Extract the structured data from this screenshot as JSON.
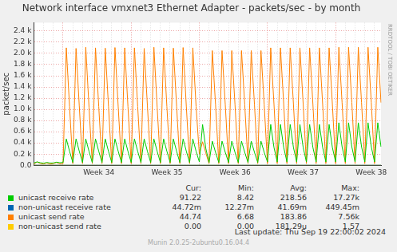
{
  "chart_data": {
    "type": "line",
    "title": "Network interface vmxnet3 Ethernet Adapter - packets/sec - by month",
    "y_label": "packet/sec",
    "categories": [
      null,
      null,
      null,
      null,
      null,
      null,
      null,
      null,
      null,
      null,
      null,
      null,
      null,
      null,
      null,
      null,
      null,
      null,
      null,
      null,
      "Week 34",
      null,
      null,
      null,
      null,
      null,
      null,
      null,
      null,
      null,
      null,
      null,
      null,
      null,
      null,
      null,
      null,
      null,
      null,
      null,
      null,
      "Week 35",
      null,
      null,
      null,
      null,
      null,
      null,
      null,
      null,
      null,
      null,
      null,
      null,
      null,
      null,
      null,
      null,
      null,
      null,
      null,
      null,
      "Week 36",
      null,
      null,
      null,
      null,
      null,
      null,
      null,
      null,
      null,
      null,
      null,
      null,
      null,
      null,
      null,
      null,
      null,
      null,
      null,
      null,
      "Week 37",
      null,
      null,
      null,
      null,
      null,
      null,
      null,
      null,
      null,
      null,
      null,
      null,
      null,
      null,
      null,
      null,
      null,
      null,
      null,
      null,
      "Week 38",
      null,
      null,
      null
    ],
    "series": [
      {
        "name": "unicast receive rate",
        "color": "#00cc00",
        "stats": [
          "91.22",
          "8.42",
          "218.56",
          "17.27k"
        ],
        "values": [
          40,
          60,
          45,
          35,
          50,
          40,
          40,
          55,
          45,
          50,
          470,
          250,
          50,
          470,
          250,
          50,
          470,
          250,
          50,
          470,
          250,
          50,
          470,
          250,
          50,
          470,
          250,
          50,
          470,
          250,
          50,
          470,
          250,
          50,
          470,
          250,
          50,
          470,
          250,
          50,
          470,
          250,
          50,
          470,
          250,
          50,
          470,
          250,
          50,
          470,
          250,
          60,
          730,
          300,
          50,
          430,
          230,
          50,
          430,
          230,
          50,
          430,
          230,
          50,
          430,
          230,
          50,
          430,
          230,
          50,
          430,
          230,
          60,
          730,
          320,
          60,
          730,
          320,
          60,
          730,
          320,
          60,
          730,
          320,
          60,
          730,
          320,
          60,
          730,
          320,
          60,
          730,
          320,
          60,
          760,
          330,
          60,
          760,
          330,
          60,
          760,
          330,
          60,
          760,
          330,
          60,
          760,
          330
        ]
      },
      {
        "name": "non-unicast receive rate",
        "color": "#0066b3",
        "stats": [
          "44.72m",
          "12.27m",
          "41.69m",
          "449.45m"
        ],
        "values": [
          0.04,
          0.05,
          0.04,
          0.04,
          0.05,
          0.04,
          0.04,
          0.05,
          0.04,
          0.04,
          0.05,
          0.04,
          0.04,
          0.05,
          0.04,
          0.04,
          0.05,
          0.04,
          0.04,
          0.05,
          0.04,
          0.04,
          0.05,
          0.04,
          0.04,
          0.05,
          0.04,
          0.04,
          0.05,
          0.04,
          0.04,
          0.05,
          0.04,
          0.04,
          0.05,
          0.04,
          0.04,
          0.05,
          0.04,
          0.04,
          0.05,
          0.04,
          0.04,
          0.05,
          0.04,
          0.04,
          0.05,
          0.04,
          0.04,
          0.05,
          0.04,
          0.04,
          0.05,
          0.04,
          0.04,
          0.05,
          0.04,
          0.04,
          0.05,
          0.04,
          0.04,
          0.05,
          0.04,
          0.04,
          0.05,
          0.04,
          0.04,
          0.05,
          0.04,
          0.04,
          0.05,
          0.04,
          0.04,
          0.05,
          0.04,
          0.04,
          0.05,
          0.04,
          0.04,
          0.05,
          0.04,
          0.04,
          0.05,
          0.04,
          0.04,
          0.05,
          0.04,
          0.04,
          0.05,
          0.04,
          0.04,
          0.05,
          0.04,
          0.04,
          0.05,
          0.04,
          0.04,
          0.05,
          0.04,
          0.04,
          0.05,
          0.04,
          0.04,
          0.05,
          0.04,
          0.04,
          0.05,
          0.04
        ]
      },
      {
        "name": "unicast send rate",
        "color": "#ff8000",
        "stats": [
          "44.74",
          "6.68",
          "183.86",
          "7.56k"
        ],
        "values": [
          20,
          60,
          30,
          25,
          40,
          20,
          30,
          50,
          25,
          30,
          2100,
          1050,
          30,
          2090,
          1060,
          30,
          2110,
          1040,
          30,
          2100,
          1050,
          30,
          2095,
          1055,
          30,
          2105,
          1045,
          30,
          2100,
          1050,
          30,
          2100,
          1050,
          30,
          2090,
          1060,
          30,
          2110,
          1040,
          30,
          2100,
          1050,
          30,
          2095,
          1055,
          30,
          2105,
          1045,
          30,
          2100,
          1050,
          200,
          420,
          220,
          30,
          2050,
          1080,
          30,
          2050,
          1080,
          30,
          2050,
          1080,
          30,
          2050,
          1080,
          30,
          2050,
          1080,
          30,
          2050,
          1080,
          30,
          2100,
          1100,
          30,
          2100,
          1100,
          30,
          2100,
          1100,
          30,
          2100,
          1100,
          30,
          2100,
          1100,
          30,
          2100,
          1100,
          30,
          2100,
          1100,
          30,
          2110,
          1120,
          30,
          2110,
          1120,
          30,
          2110,
          1120,
          30,
          2110,
          1120,
          30,
          2110,
          1120
        ]
      },
      {
        "name": "non-unicast send rate",
        "color": "#ffcc00",
        "stats": [
          "0.00",
          "0.00",
          "181.29u",
          "1.57"
        ],
        "values": [
          0,
          0,
          0,
          0,
          0,
          0,
          0,
          0,
          0,
          0,
          0,
          0,
          0,
          0,
          0,
          0,
          0,
          0,
          0,
          0,
          0,
          0,
          0,
          0,
          0,
          0,
          0,
          0,
          0,
          0,
          0,
          0,
          0,
          0,
          0,
          0,
          0,
          0,
          0,
          0,
          0,
          0,
          0,
          0,
          0,
          0,
          0,
          0,
          0,
          0,
          0,
          0,
          0,
          0,
          0,
          0,
          0,
          0,
          0,
          0,
          0,
          0,
          0,
          0,
          0,
          0,
          0,
          0,
          0,
          0,
          0,
          0,
          0,
          0,
          0,
          0,
          0,
          0,
          0,
          0,
          0,
          0,
          0,
          0,
          0,
          0,
          0,
          0,
          0,
          0,
          0,
          0,
          0,
          0,
          0,
          0,
          0,
          0,
          0,
          0,
          0,
          0,
          0,
          0,
          0,
          0,
          0,
          0
        ]
      }
    ],
    "stats_columns": [
      "Cur:",
      "Min:",
      "Avg:",
      "Max:"
    ],
    "ylim": [
      0,
      2550
    ],
    "yticks": [
      {
        "value": 0,
        "label": "0.0"
      },
      {
        "value": 200,
        "label": "0.2 k"
      },
      {
        "value": 400,
        "label": "0.4 k"
      },
      {
        "value": 600,
        "label": "0.6 k"
      },
      {
        "value": 800,
        "label": "0.8 k"
      },
      {
        "value": 1000,
        "label": "1.0 k"
      },
      {
        "value": 1200,
        "label": "1.2 k"
      },
      {
        "value": 1400,
        "label": "1.4 k"
      },
      {
        "value": 1600,
        "label": "1.6 k"
      },
      {
        "value": 1800,
        "label": "1.8 k"
      },
      {
        "value": 2000,
        "label": "2.0 k"
      },
      {
        "value": 2200,
        "label": "2.2 k"
      },
      {
        "value": 2400,
        "label": "2.4 k"
      }
    ],
    "grid": true,
    "legend": "bottom",
    "last_update": "Last update: Thu Sep 19 22:00:02 2024",
    "footer": "Munin 2.0.25-2ubuntu0.16.04.4",
    "watermark": "RRDTOOL / TOBI OETIKER"
  }
}
